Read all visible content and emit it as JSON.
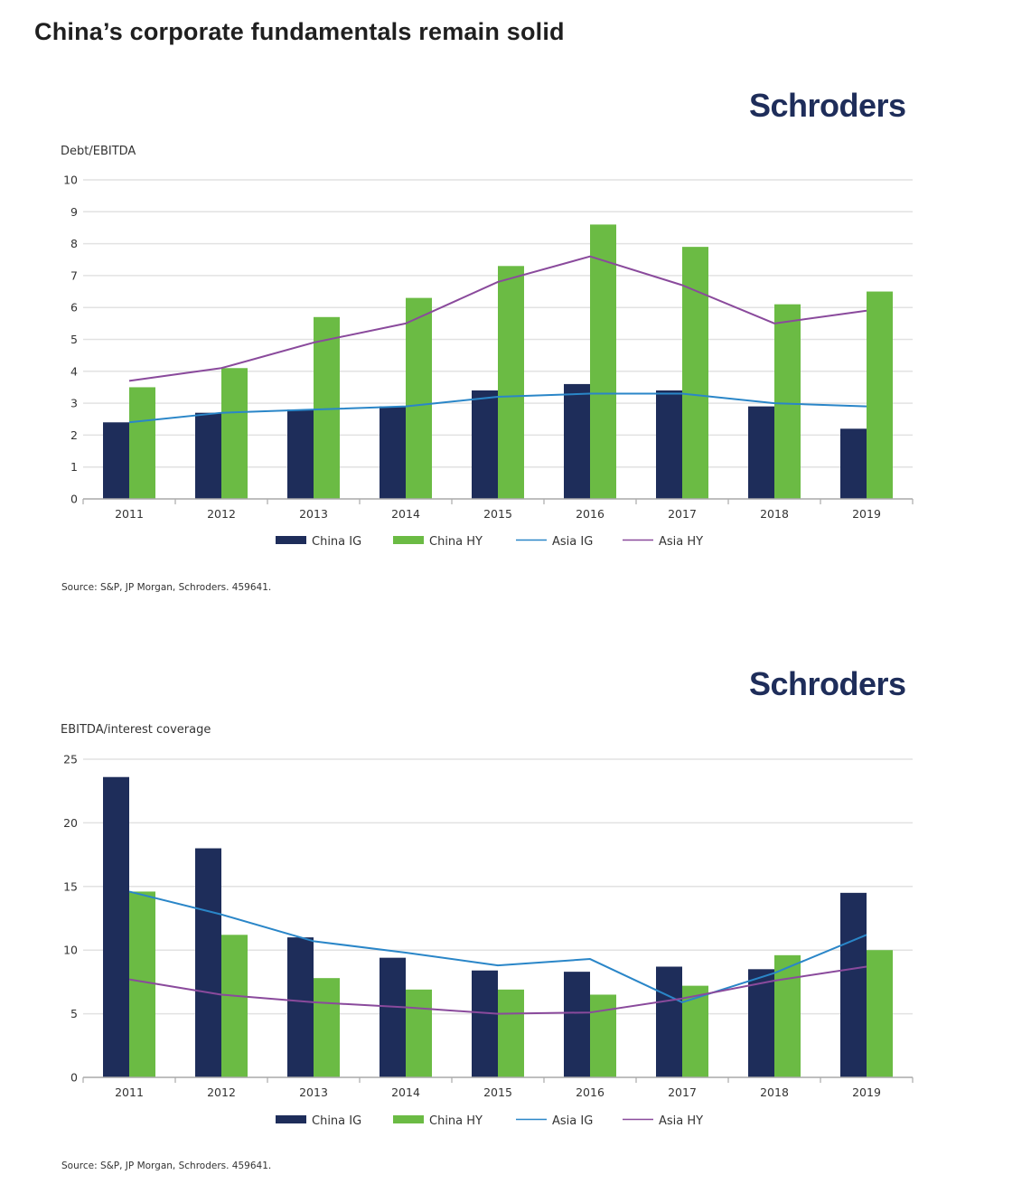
{
  "page": {
    "title": "China’s corporate fundamentals remain solid",
    "brand": "Schroders"
  },
  "colors": {
    "china_ig": "#1e2d5a",
    "china_hy": "#6bbb44",
    "asia_ig": "#2a86c8",
    "asia_hy": "#8a4a9c",
    "grid": "#e2e2e2",
    "axis": "#aaaaaa"
  },
  "chart_data": [
    {
      "type": "bar",
      "title": "",
      "ylabel": "Debt/EBITDA",
      "xlabel": "",
      "categories": [
        "2011",
        "2012",
        "2013",
        "2014",
        "2015",
        "2016",
        "2017",
        "2018",
        "2019"
      ],
      "ylim": [
        0,
        10
      ],
      "yticks": [
        0,
        1,
        2,
        3,
        4,
        5,
        6,
        7,
        8,
        9,
        10
      ],
      "grid": true,
      "legend_position": "bottom-center",
      "series": [
        {
          "name": "China IG",
          "kind": "bar",
          "values": [
            2.4,
            2.7,
            2.8,
            2.9,
            3.4,
            3.6,
            3.4,
            2.9,
            2.2
          ]
        },
        {
          "name": "China HY",
          "kind": "bar",
          "values": [
            3.5,
            4.1,
            5.7,
            6.3,
            7.3,
            8.6,
            7.9,
            6.1,
            6.5
          ]
        },
        {
          "name": "Asia IG",
          "kind": "line",
          "values": [
            2.4,
            2.7,
            2.8,
            2.9,
            3.2,
            3.3,
            3.3,
            3.0,
            2.9
          ]
        },
        {
          "name": "Asia HY",
          "kind": "line",
          "values": [
            3.7,
            4.1,
            4.9,
            5.5,
            6.8,
            7.6,
            6.7,
            5.5,
            5.9
          ]
        }
      ],
      "source": "Source: S&P, JP Morgan, Schroders. 459641."
    },
    {
      "type": "bar",
      "title": "",
      "ylabel": "EBITDA/interest coverage",
      "xlabel": "",
      "categories": [
        "2011",
        "2012",
        "2013",
        "2014",
        "2015",
        "2016",
        "2017",
        "2018",
        "2019"
      ],
      "ylim": [
        0,
        25
      ],
      "yticks": [
        0,
        5,
        10,
        15,
        20,
        25
      ],
      "grid": true,
      "legend_position": "bottom-center",
      "series": [
        {
          "name": "China IG",
          "kind": "bar",
          "values": [
            23.6,
            18.0,
            11.0,
            9.4,
            8.4,
            8.3,
            8.7,
            8.5,
            14.5
          ]
        },
        {
          "name": "China HY",
          "kind": "bar",
          "values": [
            14.6,
            11.2,
            7.8,
            6.9,
            6.9,
            6.5,
            7.2,
            9.6,
            10.0
          ]
        },
        {
          "name": "Asia IG",
          "kind": "line",
          "values": [
            14.6,
            12.8,
            10.7,
            9.8,
            8.8,
            9.3,
            5.9,
            8.2,
            11.2
          ]
        },
        {
          "name": "Asia HY",
          "kind": "line",
          "values": [
            7.7,
            6.5,
            5.9,
            5.5,
            5.0,
            5.1,
            6.2,
            7.6,
            8.7
          ]
        }
      ],
      "source": "Source: S&P, JP Morgan, Schroders. 459641."
    }
  ]
}
